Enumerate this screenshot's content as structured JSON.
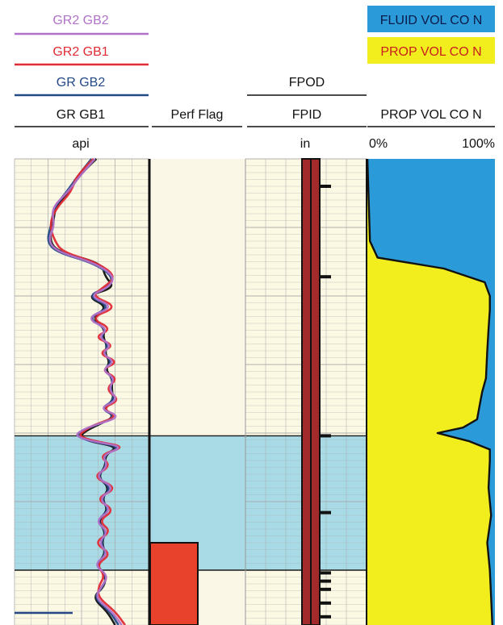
{
  "colors": {
    "gr2_gb2": "#b072c8",
    "gr2_gb1": "#e02b35",
    "gr_gb2": "#244a86",
    "gr_gb1": "#111111",
    "fluid_vol": "#2b9ad8",
    "prop_vol": "#f2ee1e",
    "perf_zone": "#a9dbe6",
    "perf_flag": "#e8412c",
    "pipe": "#a32a2a",
    "grid": "#a8a8a8",
    "track_bg": "#fbf8e4"
  },
  "chart_data": {
    "type": "line",
    "title": "",
    "legend": {
      "gamma_ray": [
        "GR2 GB2",
        "GR2 GB1",
        "GR GB2",
        "GR GB1"
      ],
      "fluid_label": "FLUID VOL CO N",
      "prop_label": "PROP VOL CO N"
    },
    "tracks": [
      {
        "id": "gamma-ray",
        "header": "GR GB1",
        "unit": "api",
        "series": [
          {
            "name": "GR2 GB2",
            "x": [
              120,
              98,
              80,
              55,
              60,
              50,
              65,
              120,
              150,
              140,
              110,
              150,
              105,
              140,
              125,
              145,
              130,
              150,
              130,
              150,
              140,
              155,
              125,
              160,
              120,
              100,
              90,
              115,
              165,
              130,
              140,
              120,
              150,
              125,
              145,
              120,
              140,
              125,
              140,
              118,
              140,
              130,
              120,
              145,
              160
            ],
            "y": [
              0,
              6,
              12,
              18,
              24,
              30,
              34,
              38,
              43,
              47,
              50,
              54,
              58,
              62,
              65,
              68,
              71,
              74,
              77,
              80,
              84,
              88,
              91,
              94,
              97,
              99,
              101,
              103,
              105,
              108,
              112,
              116,
              120,
              124,
              128,
              132,
              136,
              140,
              144,
              148,
              152,
              156,
              160,
              165,
              170
            ]
          },
          {
            "name": "GR2 GB1",
            "x": [
              118,
              92,
              85,
              62,
              52,
              60,
              72,
              125,
              152,
              132,
              115,
              155,
              112,
              146,
              118,
              150,
              124,
              156,
              128,
              155,
              135,
              158,
              130,
              155,
              118,
              105,
              95,
              120,
              168,
              125,
              145,
              115,
              155,
              120,
              150,
              125,
              145,
              118,
              145,
              122,
              135,
              125,
              125,
              150,
              165
            ],
            "y": [
              0,
              6,
              12,
              18,
              24,
              30,
              34,
              38,
              43,
              47,
              50,
              54,
              58,
              62,
              65,
              68,
              71,
              74,
              77,
              80,
              84,
              88,
              91,
              94,
              97,
              99,
              101,
              103,
              105,
              108,
              112,
              116,
              120,
              124,
              128,
              132,
              136,
              140,
              144,
              148,
              152,
              156,
              160,
              165,
              170
            ]
          },
          {
            "name": "GR GB2",
            "x": [
              115,
              95,
              78,
              58,
              55,
              48,
              62,
              118,
              148,
              138,
              108,
              145,
              108,
              138,
              128,
              140,
              132,
              146,
              132,
              148,
              142,
              150,
              128,
              152,
              122,
              102,
              92,
              112,
              160,
              132,
              138,
              122,
              145,
              128,
              142,
              122,
              138,
              128,
              138,
              120,
              138,
              132,
              118,
              142,
              155
            ],
            "y": [
              0,
              6,
              12,
              18,
              24,
              30,
              34,
              38,
              43,
              47,
              50,
              54,
              58,
              62,
              65,
              68,
              71,
              74,
              77,
              80,
              84,
              88,
              91,
              94,
              97,
              99,
              101,
              103,
              105,
              108,
              112,
              116,
              120,
              124,
              128,
              132,
              136,
              140,
              144,
              148,
              152,
              156,
              160,
              165,
              170
            ]
          },
          {
            "name": "GR GB1",
            "x": [
              122,
              96,
              82,
              60,
              58,
              52,
              66,
              130,
              135,
              150,
              106,
              140,
              115,
              135,
              132,
              138,
              135,
              142,
              136,
              146,
              145,
              148,
              132,
              150,
              125,
              108,
              98,
              110,
              155,
              135,
              136,
              124,
              142,
              130,
              140,
              124,
              136,
              130,
              136,
              122,
              136,
              134,
              116,
              138,
              150
            ],
            "y": [
              0,
              6,
              12,
              18,
              24,
              30,
              34,
              38,
              43,
              47,
              50,
              54,
              58,
              62,
              65,
              68,
              71,
              74,
              77,
              80,
              84,
              88,
              91,
              94,
              97,
              99,
              101,
              103,
              105,
              108,
              112,
              116,
              120,
              124,
              128,
              132,
              136,
              140,
              144,
              148,
              152,
              156,
              160,
              165,
              170
            ]
          }
        ]
      },
      {
        "id": "perf-flag",
        "header": "Perf Flag",
        "unit": "",
        "intervals": [
          {
            "from": 140,
            "to": 170,
            "value": 1
          }
        ]
      },
      {
        "id": "pipe",
        "header": "FPID",
        "header2": "FPOD",
        "unit": "in",
        "ticks_depth": [
          10,
          43,
          101,
          129,
          151,
          154,
          157,
          162,
          167
        ]
      },
      {
        "id": "proppant",
        "header": "PROP VOL CO N",
        "unit_left": "0%",
        "unit_right": "100%",
        "depth": [
          0,
          30,
          36,
          40,
          45,
          50,
          55,
          62,
          70,
          80,
          85,
          90,
          95,
          98,
          100,
          103,
          106,
          110,
          120,
          130,
          140,
          150,
          160,
          170
        ],
        "prop_fraction": [
          0.0,
          0.02,
          0.08,
          0.6,
          0.92,
          0.96,
          0.96,
          0.95,
          0.94,
          0.93,
          0.9,
          0.88,
          0.86,
          0.75,
          0.55,
          0.8,
          0.96,
          0.96,
          0.95,
          0.97,
          0.94,
          0.96,
          0.97,
          0.98
        ]
      }
    ],
    "perf_zones": [
      {
        "from": 101,
        "to": 150
      }
    ],
    "depth_range": [
      0,
      170
    ]
  }
}
